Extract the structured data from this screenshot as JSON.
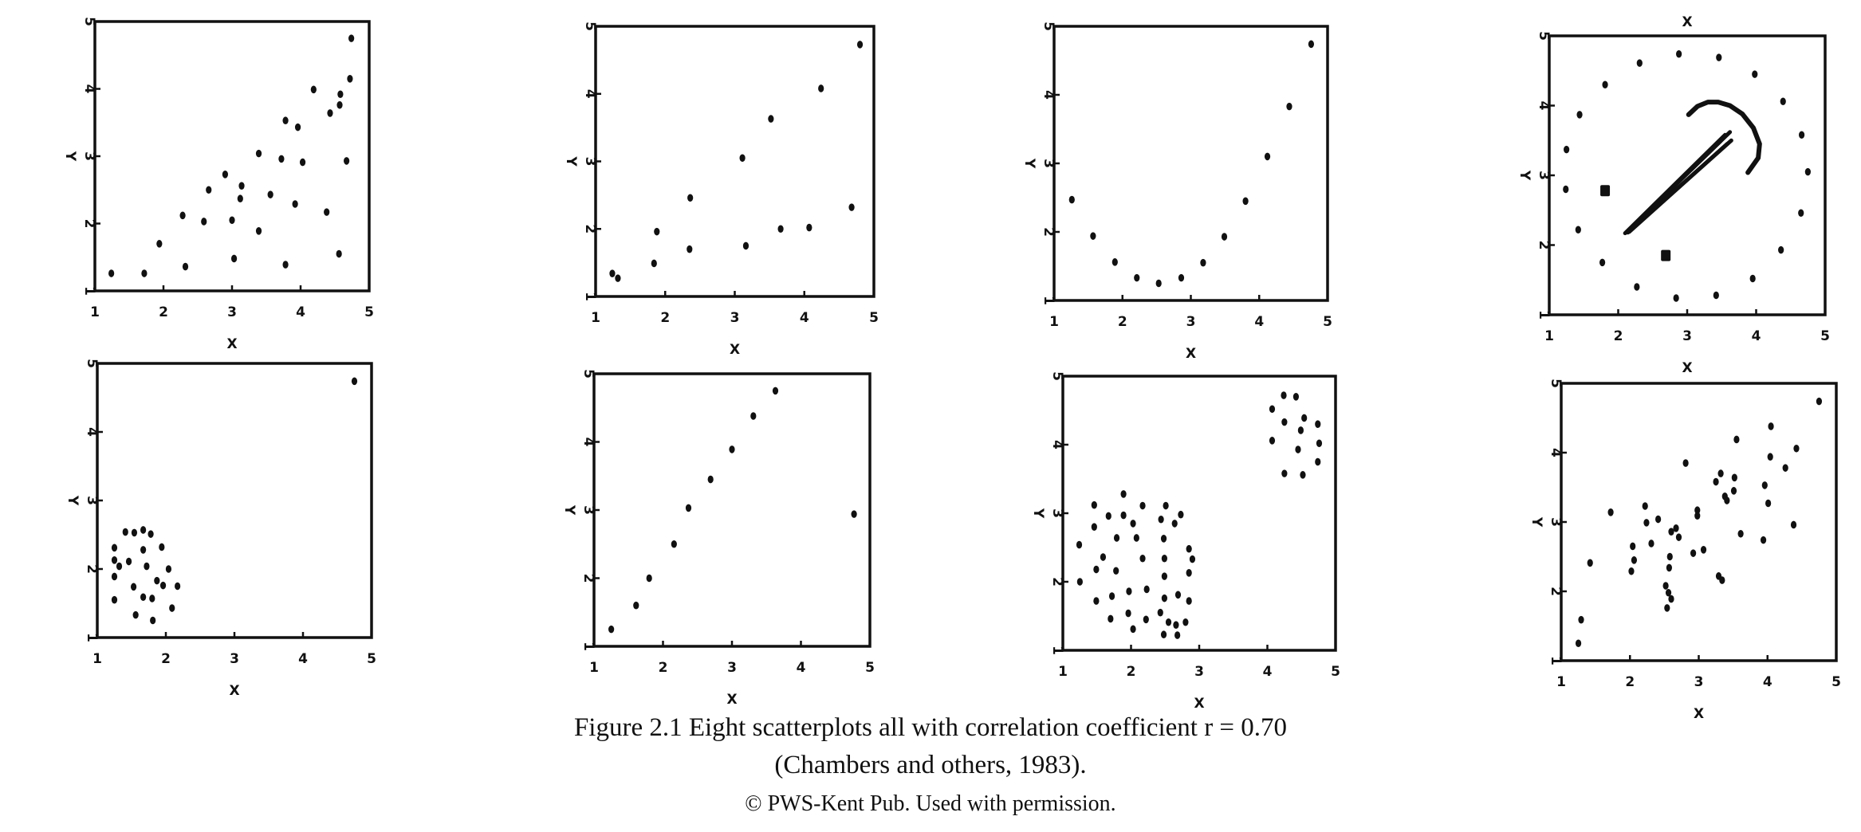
{
  "caption": {
    "line1": "Figure 2.1   Eight scatterplots all with correlation coefficient r = 0.70",
    "line2": "(Chambers and others, 1983).",
    "line3": "© PWS-Kent Pub.  Used with permission."
  },
  "chart_data": [
    {
      "type": "scatter",
      "xlabel": "X",
      "ylabel": "Y",
      "xlim": [
        1,
        5
      ],
      "ylim": [
        1,
        5
      ],
      "xticks": [
        "1",
        "2",
        "3",
        "4",
        "5"
      ],
      "yticks": [
        "1",
        "2",
        "3",
        "4",
        "5"
      ],
      "grid": false,
      "points": [
        [
          1.24,
          1.26
        ],
        [
          1.72,
          1.26
        ],
        [
          1.94,
          1.7
        ],
        [
          2.32,
          1.36
        ],
        [
          2.28,
          2.12
        ],
        [
          2.59,
          2.03
        ],
        [
          2.66,
          2.5
        ],
        [
          2.9,
          2.73
        ],
        [
          3.0,
          2.05
        ],
        [
          3.03,
          1.48
        ],
        [
          3.14,
          2.56
        ],
        [
          3.12,
          2.37
        ],
        [
          3.39,
          3.04
        ],
        [
          3.39,
          1.89
        ],
        [
          3.56,
          2.43
        ],
        [
          3.72,
          2.96
        ],
        [
          3.78,
          3.53
        ],
        [
          3.78,
          1.39
        ],
        [
          3.92,
          2.29
        ],
        [
          3.96,
          3.43
        ],
        [
          4.03,
          2.91
        ],
        [
          4.19,
          3.99
        ],
        [
          4.38,
          2.17
        ],
        [
          4.43,
          3.64
        ],
        [
          4.56,
          1.55
        ],
        [
          4.57,
          3.76
        ],
        [
          4.58,
          3.92
        ],
        [
          4.67,
          2.93
        ],
        [
          4.72,
          4.15
        ],
        [
          4.74,
          4.75
        ]
      ]
    },
    {
      "type": "scatter",
      "xlabel": "X",
      "ylabel": "Y",
      "xlim": [
        1,
        5
      ],
      "ylim": [
        1,
        5
      ],
      "xticks": [
        "1",
        "2",
        "3",
        "4",
        "5"
      ],
      "yticks": [
        "1",
        "2",
        "3",
        "4",
        "5"
      ],
      "grid": false,
      "points": [
        [
          1.24,
          1.34
        ],
        [
          1.32,
          1.27
        ],
        [
          1.84,
          1.49
        ],
        [
          1.88,
          1.96
        ],
        [
          2.35,
          1.7
        ],
        [
          2.36,
          2.46
        ],
        [
          3.11,
          3.05
        ],
        [
          3.16,
          1.75
        ],
        [
          3.52,
          3.63
        ],
        [
          3.66,
          2.0
        ],
        [
          4.07,
          2.02
        ],
        [
          4.24,
          4.08
        ],
        [
          4.68,
          2.32
        ],
        [
          4.8,
          4.73
        ]
      ]
    },
    {
      "type": "scatter",
      "xlabel": "X",
      "ylabel": "Y",
      "xlim": [
        1,
        5
      ],
      "ylim": [
        1,
        5
      ],
      "xticks": [
        "1",
        "2",
        "3",
        "4",
        "5"
      ],
      "yticks": [
        "1",
        "2",
        "3",
        "4",
        "5"
      ],
      "grid": false,
      "points": [
        [
          1.26,
          2.47
        ],
        [
          1.57,
          1.94
        ],
        [
          1.89,
          1.56
        ],
        [
          2.21,
          1.33
        ],
        [
          2.53,
          1.25
        ],
        [
          2.86,
          1.33
        ],
        [
          3.18,
          1.55
        ],
        [
          3.49,
          1.93
        ],
        [
          3.8,
          2.45
        ],
        [
          4.12,
          3.1
        ],
        [
          4.44,
          3.83
        ],
        [
          4.76,
          4.74
        ]
      ]
    },
    {
      "type": "scatter",
      "xlabel": "X",
      "xlabel_top": "X",
      "ylabel": "Y",
      "xlim": [
        1,
        5
      ],
      "ylim": [
        1,
        5
      ],
      "xticks": [
        "1",
        "2",
        "3",
        "4",
        "5"
      ],
      "yticks": [
        "1",
        "2",
        "3",
        "4",
        "5"
      ],
      "grid": false,
      "points": [
        [
          1.25,
          3.37
        ],
        [
          1.24,
          2.8
        ],
        [
          1.44,
          3.87
        ],
        [
          1.42,
          2.22
        ],
        [
          1.81,
          4.3
        ],
        [
          1.77,
          1.75
        ],
        [
          2.31,
          4.61
        ],
        [
          2.27,
          1.4
        ],
        [
          2.88,
          4.74
        ],
        [
          2.84,
          1.24
        ],
        [
          3.46,
          4.69
        ],
        [
          3.42,
          1.28
        ],
        [
          3.98,
          4.45
        ],
        [
          3.95,
          1.52
        ],
        [
          4.39,
          4.06
        ],
        [
          4.36,
          1.93
        ],
        [
          4.66,
          3.58
        ],
        [
          4.65,
          2.46
        ],
        [
          4.75,
          3.05
        ]
      ],
      "square_points": [
        [
          1.81,
          2.78
        ],
        [
          2.69,
          1.85
        ]
      ],
      "arc_points": [
        [
          3.02,
          3.87
        ],
        [
          3.15,
          3.99
        ],
        [
          3.3,
          4.05
        ],
        [
          3.45,
          4.05
        ],
        [
          3.62,
          4.0
        ],
        [
          3.8,
          3.88
        ],
        [
          3.96,
          3.68
        ],
        [
          4.05,
          3.45
        ],
        [
          4.03,
          3.25
        ],
        [
          3.88,
          3.04
        ]
      ],
      "streak_lines": [
        [
          [
            2.1,
            2.17
          ],
          [
            3.55,
            3.58
          ]
        ],
        [
          [
            2.12,
            2.18
          ],
          [
            3.62,
            3.62
          ]
        ],
        [
          [
            2.14,
            2.18
          ],
          [
            3.64,
            3.5
          ]
        ],
        [
          [
            2.16,
            2.19
          ],
          [
            3.58,
            3.45
          ]
        ]
      ]
    },
    {
      "type": "scatter",
      "xlabel": "X",
      "ylabel": "Y",
      "xlim": [
        1,
        5
      ],
      "ylim": [
        1,
        5
      ],
      "xticks": [
        "1",
        "2",
        "3",
        "4",
        "5"
      ],
      "yticks": [
        "1",
        "2",
        "3",
        "4",
        "5"
      ],
      "grid": false,
      "points": [
        [
          4.75,
          4.74
        ],
        [
          1.25,
          2.31
        ],
        [
          1.41,
          2.54
        ],
        [
          1.54,
          2.53
        ],
        [
          1.67,
          2.57
        ],
        [
          1.78,
          2.51
        ],
        [
          1.67,
          2.28
        ],
        [
          1.94,
          2.32
        ],
        [
          1.25,
          2.13
        ],
        [
          1.46,
          2.11
        ],
        [
          1.32,
          2.04
        ],
        [
          1.72,
          2.04
        ],
        [
          2.04,
          2.0
        ],
        [
          1.25,
          1.89
        ],
        [
          1.87,
          1.83
        ],
        [
          1.96,
          1.76
        ],
        [
          2.17,
          1.75
        ],
        [
          1.53,
          1.74
        ],
        [
          1.67,
          1.59
        ],
        [
          1.8,
          1.57
        ],
        [
          1.25,
          1.55
        ],
        [
          2.09,
          1.43
        ],
        [
          1.56,
          1.33
        ],
        [
          1.81,
          1.25
        ]
      ]
    },
    {
      "type": "scatter",
      "xlabel": "X",
      "ylabel": "Y",
      "xlim": [
        1,
        5
      ],
      "ylim": [
        1,
        5
      ],
      "xticks": [
        "1",
        "2",
        "3",
        "4",
        "5"
      ],
      "yticks": [
        "1",
        "2",
        "3",
        "4",
        "5"
      ],
      "grid": false,
      "points": [
        [
          1.25,
          1.25
        ],
        [
          1.61,
          1.6
        ],
        [
          1.8,
          2.0
        ],
        [
          2.16,
          2.5
        ],
        [
          2.37,
          3.03
        ],
        [
          2.69,
          3.45
        ],
        [
          3.0,
          3.89
        ],
        [
          3.31,
          4.38
        ],
        [
          3.63,
          4.75
        ],
        [
          4.77,
          2.94
        ]
      ]
    },
    {
      "type": "scatter",
      "xlabel": "X",
      "ylabel": "Y",
      "xlim": [
        1,
        5
      ],
      "ylim": [
        1,
        5
      ],
      "xticks": [
        "1",
        "2",
        "3",
        "4",
        "5"
      ],
      "yticks": [
        "1",
        "2",
        "3",
        "4",
        "5"
      ],
      "grid": false,
      "points": [
        [
          4.24,
          4.72
        ],
        [
          4.42,
          4.7
        ],
        [
          4.07,
          4.52
        ],
        [
          4.25,
          4.33
        ],
        [
          4.54,
          4.39
        ],
        [
          4.74,
          4.3
        ],
        [
          4.49,
          4.21
        ],
        [
          4.07,
          4.06
        ],
        [
          4.76,
          4.02
        ],
        [
          4.45,
          3.93
        ],
        [
          4.74,
          3.75
        ],
        [
          4.25,
          3.58
        ],
        [
          4.52,
          3.56
        ],
        [
          1.89,
          3.28
        ],
        [
          1.46,
          3.12
        ],
        [
          2.17,
          3.11
        ],
        [
          2.51,
          3.11
        ],
        [
          1.67,
          2.96
        ],
        [
          1.89,
          2.97
        ],
        [
          2.44,
          2.91
        ],
        [
          2.73,
          2.98
        ],
        [
          2.03,
          2.85
        ],
        [
          2.64,
          2.85
        ],
        [
          1.46,
          2.8
        ],
        [
          1.79,
          2.64
        ],
        [
          2.08,
          2.64
        ],
        [
          2.48,
          2.63
        ],
        [
          1.24,
          2.54
        ],
        [
          2.85,
          2.48
        ],
        [
          1.59,
          2.36
        ],
        [
          2.17,
          2.34
        ],
        [
          2.49,
          2.34
        ],
        [
          2.9,
          2.33
        ],
        [
          1.49,
          2.18
        ],
        [
          1.78,
          2.16
        ],
        [
          2.85,
          2.13
        ],
        [
          2.49,
          2.08
        ],
        [
          1.25,
          2.0
        ],
        [
          1.97,
          1.86
        ],
        [
          2.23,
          1.89
        ],
        [
          1.72,
          1.79
        ],
        [
          2.49,
          1.76
        ],
        [
          2.69,
          1.81
        ],
        [
          1.49,
          1.72
        ],
        [
          2.85,
          1.72
        ],
        [
          1.96,
          1.54
        ],
        [
          2.43,
          1.55
        ],
        [
          1.7,
          1.46
        ],
        [
          2.22,
          1.45
        ],
        [
          2.55,
          1.41
        ],
        [
          2.66,
          1.37
        ],
        [
          2.8,
          1.41
        ],
        [
          2.03,
          1.31
        ],
        [
          2.48,
          1.23
        ],
        [
          2.68,
          1.22
        ]
      ]
    },
    {
      "type": "scatter",
      "xlabel": "X",
      "ylabel": "Y",
      "xlim": [
        1,
        5
      ],
      "ylim": [
        1,
        5
      ],
      "xticks": [
        "1",
        "2",
        "3",
        "4",
        "5"
      ],
      "yticks": [
        "1",
        "2",
        "3",
        "4",
        "5"
      ],
      "grid": false,
      "points": [
        [
          4.75,
          4.74
        ],
        [
          4.05,
          4.38
        ],
        [
          3.55,
          4.19
        ],
        [
          4.42,
          4.06
        ],
        [
          4.04,
          3.94
        ],
        [
          2.81,
          3.85
        ],
        [
          4.26,
          3.78
        ],
        [
          3.32,
          3.7
        ],
        [
          3.52,
          3.64
        ],
        [
          3.25,
          3.58
        ],
        [
          3.96,
          3.53
        ],
        [
          3.51,
          3.45
        ],
        [
          3.38,
          3.37
        ],
        [
          3.41,
          3.31
        ],
        [
          4.01,
          3.27
        ],
        [
          2.22,
          3.23
        ],
        [
          1.72,
          3.14
        ],
        [
          2.98,
          3.17
        ],
        [
          2.98,
          3.09
        ],
        [
          2.41,
          3.04
        ],
        [
          2.24,
          2.99
        ],
        [
          4.38,
          2.96
        ],
        [
          2.67,
          2.91
        ],
        [
          2.6,
          2.86
        ],
        [
          3.61,
          2.83
        ],
        [
          2.71,
          2.78
        ],
        [
          3.94,
          2.74
        ],
        [
          2.31,
          2.69
        ],
        [
          2.04,
          2.65
        ],
        [
          2.92,
          2.55
        ],
        [
          3.07,
          2.6
        ],
        [
          2.58,
          2.5
        ],
        [
          2.06,
          2.45
        ],
        [
          1.42,
          2.41
        ],
        [
          2.57,
          2.34
        ],
        [
          2.02,
          2.29
        ],
        [
          3.29,
          2.22
        ],
        [
          3.34,
          2.16
        ],
        [
          2.52,
          2.08
        ],
        [
          2.56,
          1.98
        ],
        [
          2.6,
          1.89
        ],
        [
          2.54,
          1.76
        ],
        [
          1.29,
          1.59
        ],
        [
          1.25,
          1.25
        ]
      ]
    }
  ]
}
